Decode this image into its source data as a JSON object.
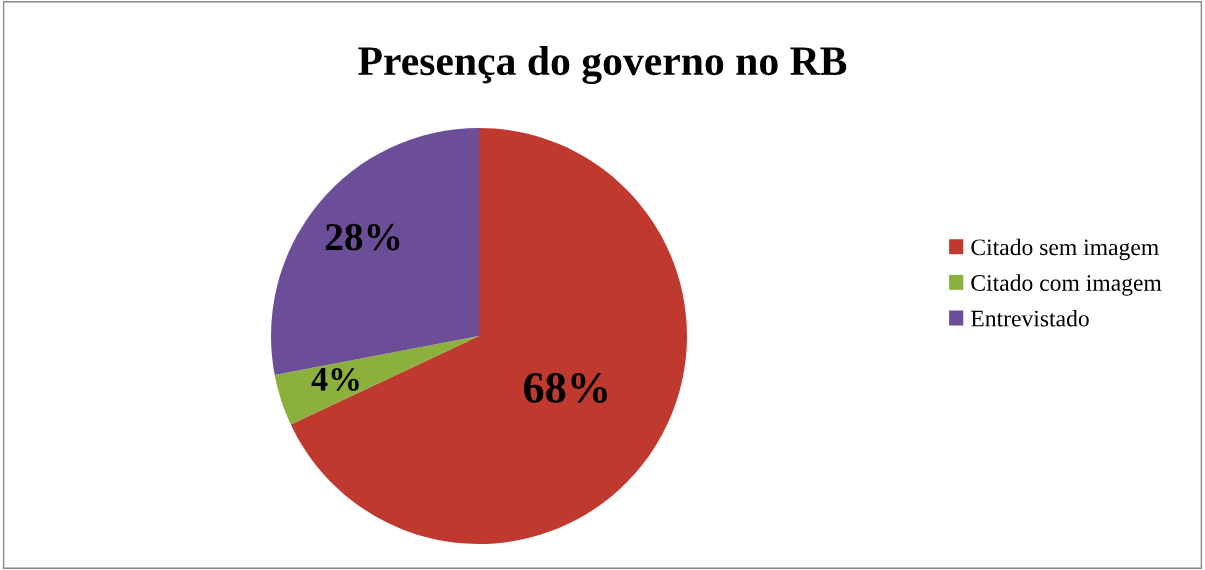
{
  "chart_data": {
    "type": "pie",
    "title": "Presença do governo no RB",
    "categories": [
      "Citado sem imagem",
      "Citado com imagem",
      "Entrevistado"
    ],
    "values": [
      68,
      4,
      28
    ],
    "colors": [
      "#c0392f",
      "#8bb13c",
      "#6c4e98"
    ],
    "value_labels": [
      "68%",
      "4%",
      "28%"
    ],
    "legend": "right"
  }
}
